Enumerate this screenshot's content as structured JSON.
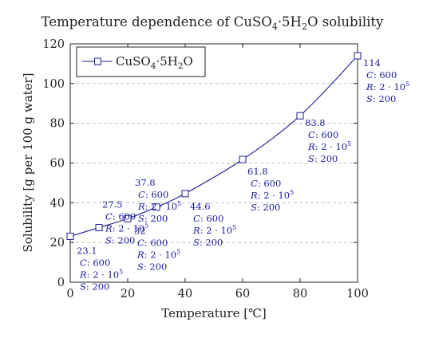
{
  "chart_data": {
    "type": "line",
    "title": "Temperature dependence of CuSO4·5H2O solubility",
    "title_parts": {
      "pre": "Temperature dependence of CuSO",
      "sub1": "4",
      "mid": "·5H",
      "sub2": "2",
      "post": "O solubility"
    },
    "xlabel": "Temperature [℃]",
    "ylabel": "Solubility [g per 100 g water]",
    "xlim": [
      0,
      100
    ],
    "ylim": [
      0,
      120
    ],
    "xticks": [
      "0",
      "20",
      "40",
      "60",
      "80",
      "100"
    ],
    "yticks": [
      "0",
      "20",
      "40",
      "60",
      "80",
      "100",
      "120"
    ],
    "grid": "horizontal dashed",
    "legend_position": "top-left",
    "series": [
      {
        "name": "CuSO4·5H2O",
        "name_parts": {
          "pre": "CuSO",
          "sub1": "4",
          "mid": "·5H",
          "sub2": "2",
          "post": "O"
        },
        "color": "#1f1f8f",
        "marker": "square",
        "x": [
          0,
          10,
          20,
          30,
          40,
          60,
          80,
          100
        ],
        "y": [
          23.1,
          27.5,
          32,
          37.8,
          44.6,
          61.8,
          83.8,
          114
        ],
        "labels": [
          {
            "value": "23.1",
            "c": "600",
            "r_base": "2 · 10",
            "r_exp": "5",
            "s": "200"
          },
          {
            "value": "27.5",
            "c": "600",
            "r_base": "2 · 10",
            "r_exp": "5",
            "s": "200"
          },
          {
            "value": "32",
            "c": "600",
            "r_base": "2 · 10",
            "r_exp": "5",
            "s": "200"
          },
          {
            "value": "37.8",
            "c": "600",
            "r_base": "2 · 10",
            "r_exp": "5",
            "s": "200"
          },
          {
            "value": "44.6",
            "c": "600",
            "r_base": "2 · 10",
            "r_exp": "5",
            "s": "200"
          },
          {
            "value": "61.8",
            "c": "600",
            "r_base": "2 · 10",
            "r_exp": "5",
            "s": "200"
          },
          {
            "value": "83.8",
            "c": "600",
            "r_base": "2 · 10",
            "r_exp": "5",
            "s": "200"
          },
          {
            "value": "114",
            "c": "600",
            "r_base": "2 · 10",
            "r_exp": "5",
            "s": "200"
          }
        ],
        "label_keys": {
          "c": "C",
          "r": "R",
          "s": "S"
        }
      }
    ]
  }
}
